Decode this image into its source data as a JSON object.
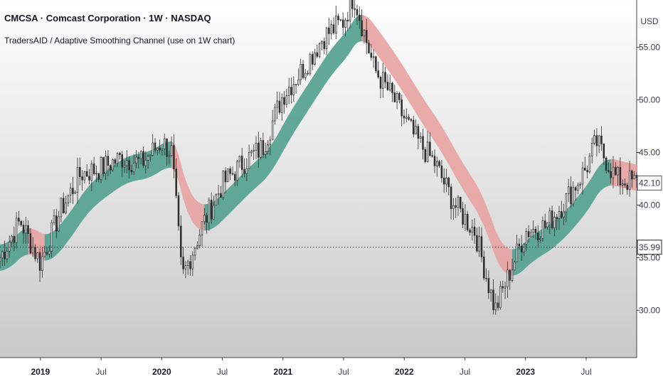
{
  "header": {
    "title": "CMCSA · Comcast Corporation · 1W · NASDAQ",
    "indicator": "TradersAID / Adaptive Smoothing Channel (use on 1W chart)"
  },
  "colors": {
    "bull_band": "#5aa394",
    "bear_band": "#e8a2a2",
    "candle": "#2c2c2c",
    "background_top": "#ffffff",
    "background_bottom": "#c9c9c9"
  },
  "chart_data": {
    "type": "line",
    "symbol": "CMCSA",
    "currency": "USD",
    "ylim": [
      25.5,
      59.5
    ],
    "y_ticks": [
      {
        "value": 30,
        "label": "30.00"
      },
      {
        "value": 35,
        "label": "35.00"
      },
      {
        "value": 40,
        "label": "40.00"
      },
      {
        "value": 45,
        "label": "45.00"
      },
      {
        "value": 50,
        "label": "50.00"
      },
      {
        "value": 55,
        "label": "55.00"
      }
    ],
    "x_ticks": [
      {
        "label": "2019",
        "major": true,
        "date": "2019-01"
      },
      {
        "label": "Jul",
        "major": false,
        "date": "2019-07"
      },
      {
        "label": "2020",
        "major": true,
        "date": "2020-01"
      },
      {
        "label": "Jul",
        "major": false,
        "date": "2020-07"
      },
      {
        "label": "2021",
        "major": true,
        "date": "2021-01"
      },
      {
        "label": "Jul",
        "major": false,
        "date": "2021-07"
      },
      {
        "label": "2022",
        "major": true,
        "date": "2022-01"
      },
      {
        "label": "Jul",
        "major": false,
        "date": "2022-07"
      },
      {
        "label": "2023",
        "major": true,
        "date": "2023-01"
      },
      {
        "label": "Jul",
        "major": false,
        "date": "2023-07"
      }
    ],
    "x_range": [
      "2018-09",
      "2023-12"
    ],
    "reference_line": {
      "value": 35.99,
      "label": "35.99"
    },
    "last_price": {
      "value": 42.1,
      "label": "42.10"
    },
    "series": [
      {
        "name": "",
        "points": [
          {
            "date": "2018-09",
            "value": 35.0
          },
          {
            "date": "2018-11",
            "value": 38.5
          },
          {
            "date": "2019-01",
            "value": 34.5
          },
          {
            "date": "2019-03",
            "value": 39.5
          },
          {
            "date": "2019-05",
            "value": 43.0
          },
          {
            "date": "2019-07",
            "value": 43.5
          },
          {
            "date": "2019-09",
            "value": 44.5
          },
          {
            "date": "2019-11",
            "value": 44.0
          },
          {
            "date": "2020-01",
            "value": 46.0
          },
          {
            "date": "2020-02",
            "value": 45.0
          },
          {
            "date": "2020-03",
            "value": 33.0
          },
          {
            "date": "2020-05",
            "value": 38.0
          },
          {
            "date": "2020-07",
            "value": 42.0
          },
          {
            "date": "2020-09",
            "value": 44.0
          },
          {
            "date": "2020-11",
            "value": 45.5
          },
          {
            "date": "2021-01",
            "value": 50.5
          },
          {
            "date": "2021-03",
            "value": 53.0
          },
          {
            "date": "2021-05",
            "value": 56.0
          },
          {
            "date": "2021-07",
            "value": 57.5
          },
          {
            "date": "2021-08",
            "value": 60.0
          },
          {
            "date": "2021-10",
            "value": 53.0
          },
          {
            "date": "2021-12",
            "value": 50.0
          },
          {
            "date": "2022-02",
            "value": 46.5
          },
          {
            "date": "2022-04",
            "value": 44.0
          },
          {
            "date": "2022-06",
            "value": 40.0
          },
          {
            "date": "2022-08",
            "value": 37.5
          },
          {
            "date": "2022-10",
            "value": 30.0
          },
          {
            "date": "2022-11",
            "value": 32.5
          },
          {
            "date": "2023-01",
            "value": 37.5
          },
          {
            "date": "2023-03",
            "value": 38.0
          },
          {
            "date": "2023-05",
            "value": 40.5
          },
          {
            "date": "2023-07",
            "value": 43.5
          },
          {
            "date": "2023-08",
            "value": 46.0
          },
          {
            "date": "2023-10",
            "value": 42.5
          },
          {
            "date": "2023-12",
            "value": 42.1
          }
        ]
      }
    ],
    "grid": false
  }
}
